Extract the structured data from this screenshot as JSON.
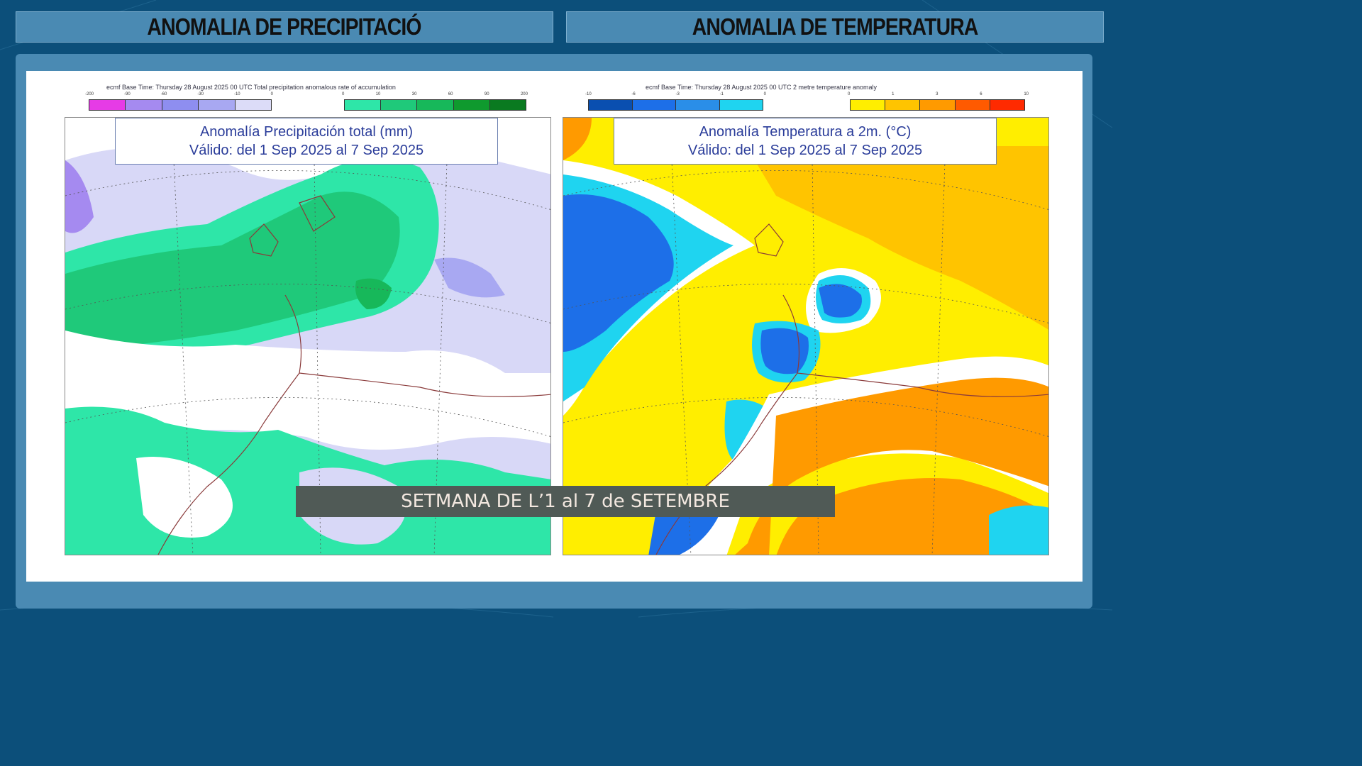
{
  "headers": {
    "left": "ANOMALIA DE PRECIPITACIÓ",
    "right": "ANOMALIA DE TEMPERATURA"
  },
  "maps": {
    "precipitation": {
      "base_line": "ecmf  Base Time: Thursday 28 August 2025 00 UTC Total precipitation anomalous rate of accumulation",
      "title_line1": "Anomalía Precipitación total (mm)",
      "title_line2": "Válido: del 1 Sep 2025 al 7 Sep 2025",
      "neg_ticks": [
        "-200",
        "-90",
        "-60",
        "-30",
        "-10",
        "0"
      ],
      "pos_ticks": [
        "0",
        "10",
        "30",
        "60",
        "90",
        "200"
      ],
      "neg_colors": [
        "#e63be6",
        "#a58af0",
        "#8e8ef0",
        "#a8a8f2",
        "#dcdcf8"
      ],
      "pos_colors": [
        "#2ee6a8",
        "#1fc97a",
        "#17b85a",
        "#0f9a2e",
        "#0a7a20"
      ]
    },
    "temperature": {
      "base_line": "ecmf  Base Time: Thursday 28 August 2025 00 UTC 2 metre temperature anomaly",
      "title_line1": "Anomalía Temperatura a 2m. (°C)",
      "title_line2": "Válido: del 1 Sep 2025 al 7 Sep 2025",
      "neg_ticks": [
        "-10",
        "-6",
        "-3",
        "-1",
        "0"
      ],
      "pos_ticks": [
        "0",
        "1",
        "3",
        "6",
        "10"
      ],
      "neg_colors": [
        "#0a4fb0",
        "#1d6fe8",
        "#2a8ee8",
        "#1fd4f0"
      ],
      "pos_colors": [
        "#ffee00",
        "#ffc400",
        "#ff9a00",
        "#ff5a00",
        "#ff2a00"
      ]
    }
  },
  "caption": "SETMANA DE L’1 al 7 de SETEMBRE"
}
